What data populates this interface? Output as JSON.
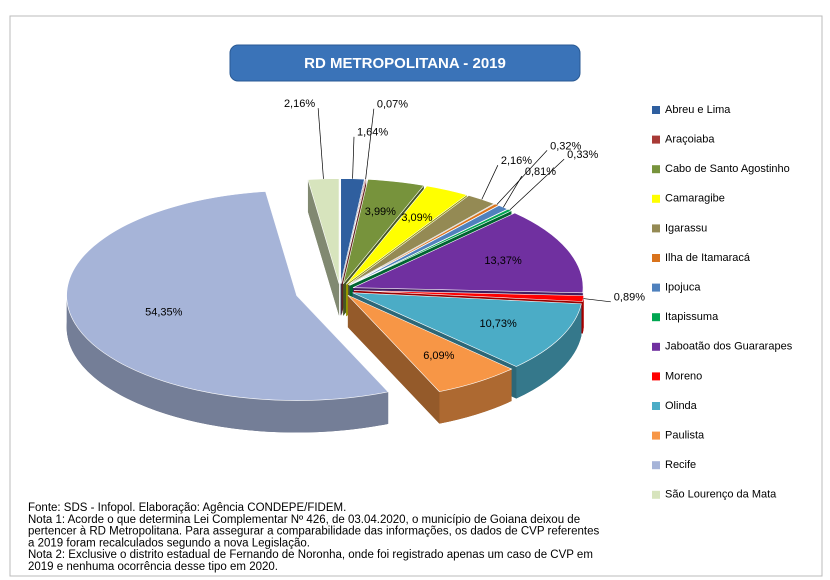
{
  "chart_data": {
    "type": "pie",
    "title": "RD METROPOLITANA - 2019",
    "categories": [
      "Abreu e Lima",
      "Araçoiaba",
      "Cabo de Santo Agostinho",
      "Camaragibe",
      "Igarassu",
      "Ilha de Itamaracá",
      "Ipojuca",
      "Itapissuma",
      "Jaboatão dos Guararapes",
      "Moreno",
      "Olinda",
      "Paulista",
      "Recife",
      "São Lourenço da Mata"
    ],
    "values": [
      1.64,
      0.07,
      3.99,
      3.09,
      2.16,
      0.32,
      0.81,
      0.33,
      13.37,
      0.89,
      10.73,
      6.09,
      54.35,
      2.16
    ],
    "value_labels": [
      "1,64%",
      "0,07%",
      "3,99%",
      "3,09%",
      "2,16%",
      "0,32%",
      "0,81%",
      "0,33%",
      "13,37%",
      "0,89%",
      "10,73%",
      "6,09%",
      "54,35%",
      "2,16%"
    ],
    "colors": [
      "#2f5f9f",
      "#a83a36",
      "#77933c",
      "#ffff00",
      "#948a54",
      "#d9731c",
      "#4f81bd",
      "#00a651",
      "#7030a0",
      "#ff0000",
      "#4bacc6",
      "#f79646",
      "#a6b4d8",
      "#d7e4bd"
    ],
    "legend": "right"
  },
  "footer": {
    "lines": [
      "Fonte: SDS - Infopol. Elaboração: Agência CONDEPE/FIDEM.",
      "Nota 1: Acorde o que determina Lei Complementar Nº 426, de 03.04.2020, o município de Goiana deixou de",
      "pertencer à RD Metropolitana. Para assegurar a comparabilidade das informações, os dados de CVP referentes",
      "a 2019 foram recalculados segundo a nova Legislação.",
      "Nota 2: Exclusive o distrito estadual de Fernando de Noronha, onde  foi registrado apenas um caso de CVP em",
      "2019 e  nenhuma ocorrência desse  tipo em 2020."
    ]
  }
}
